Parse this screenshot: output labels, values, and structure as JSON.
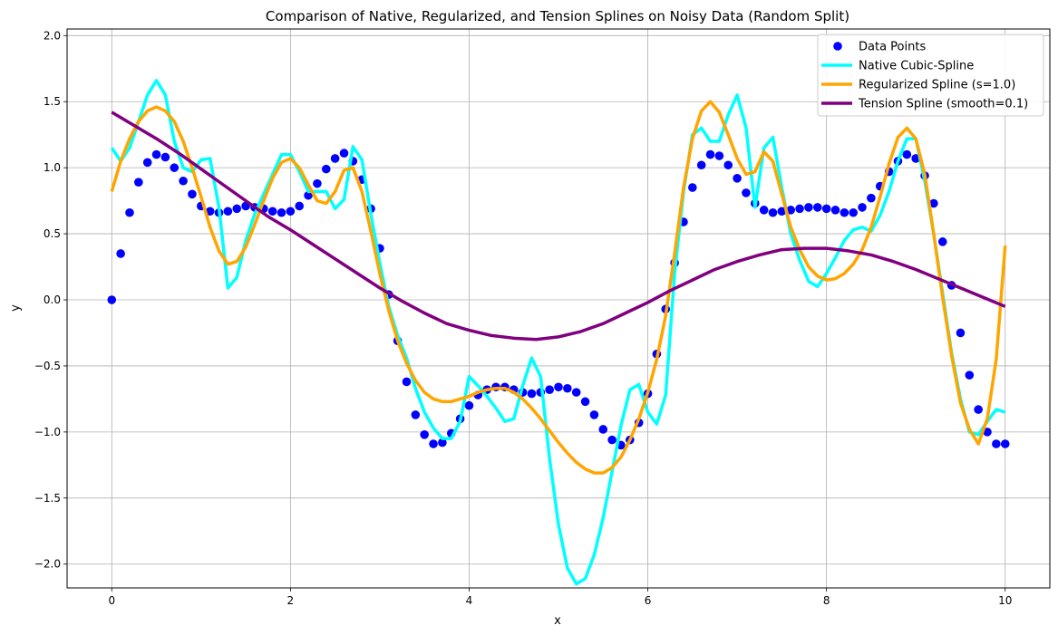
{
  "chart_data": {
    "type": "line",
    "title": "Comparison of Native, Regularized, and Tension Splines on Noisy Data (Random Split)",
    "xlabel": "x",
    "ylabel": "y",
    "xlim": [
      -0.5,
      10.5
    ],
    "ylim": [
      -2.18,
      2.05
    ],
    "xticks": [
      0,
      2,
      4,
      6,
      8,
      10
    ],
    "xtick_labels": [
      "0",
      "2",
      "4",
      "6",
      "8",
      "10"
    ],
    "yticks": [
      -2.0,
      -1.5,
      -1.0,
      -0.5,
      0.0,
      0.5,
      1.0,
      1.5,
      2.0
    ],
    "ytick_labels": [
      "−2.0",
      "−1.5",
      "−1.0",
      "−0.5",
      "0.0",
      "0.5",
      "1.0",
      "1.5",
      "2.0"
    ],
    "grid": true,
    "legend_position": "top-right",
    "series": [
      {
        "name": "Data Points",
        "kind": "scatter",
        "color": "#0000ff",
        "x": [
          0,
          0.1,
          0.2,
          0.3,
          0.4,
          0.5,
          0.6,
          0.7,
          0.8,
          0.9,
          1.0,
          1.1,
          1.2,
          1.3,
          1.4,
          1.5,
          1.6,
          1.7,
          1.8,
          1.9,
          2.0,
          2.1,
          2.2,
          2.3,
          2.4,
          2.5,
          2.6,
          2.7,
          2.8,
          2.9,
          3.0,
          3.1,
          3.2,
          3.3,
          3.4,
          3.5,
          3.6,
          3.7,
          3.8,
          3.9,
          4.0,
          4.1,
          4.2,
          4.3,
          4.4,
          4.5,
          4.6,
          4.7,
          4.8,
          4.9,
          5.0,
          5.1,
          5.2,
          5.3,
          5.4,
          5.5,
          5.6,
          5.7,
          5.8,
          5.9,
          6.0,
          6.1,
          6.2,
          6.3,
          6.4,
          6.5,
          6.6,
          6.7,
          6.8,
          6.9,
          7.0,
          7.1,
          7.2,
          7.3,
          7.4,
          7.5,
          7.6,
          7.7,
          7.8,
          7.9,
          8.0,
          8.1,
          8.2,
          8.3,
          8.4,
          8.5,
          8.6,
          8.7,
          8.8,
          8.9,
          9.0,
          9.1,
          9.2,
          9.3,
          9.4,
          9.5,
          9.6,
          9.7,
          9.8,
          9.9,
          10.0
        ],
        "y": [
          0.0,
          0.35,
          0.66,
          0.89,
          1.04,
          1.1,
          1.08,
          1.0,
          0.9,
          0.8,
          0.71,
          0.67,
          0.66,
          0.67,
          0.69,
          0.71,
          0.7,
          0.69,
          0.67,
          0.66,
          0.67,
          0.71,
          0.79,
          0.88,
          0.99,
          1.07,
          1.11,
          1.05,
          0.91,
          0.69,
          0.39,
          0.04,
          -0.31,
          -0.62,
          -0.87,
          -1.02,
          -1.09,
          -1.08,
          -1.01,
          -0.9,
          -0.8,
          -0.72,
          -0.68,
          -0.66,
          -0.66,
          -0.68,
          -0.7,
          -0.71,
          -0.7,
          -0.68,
          -0.66,
          -0.67,
          -0.7,
          -0.77,
          -0.87,
          -0.98,
          -1.06,
          -1.1,
          -1.06,
          -0.93,
          -0.71,
          -0.41,
          -0.07,
          0.28,
          0.59,
          0.85,
          1.02,
          1.1,
          1.09,
          1.02,
          0.92,
          0.81,
          0.73,
          0.68,
          0.66,
          0.67,
          0.68,
          0.69,
          0.7,
          0.7,
          0.69,
          0.68,
          0.66,
          0.66,
          0.7,
          0.77,
          0.86,
          0.97,
          1.05,
          1.1,
          1.07,
          0.94,
          0.73,
          0.44,
          0.11,
          -0.25,
          -0.57,
          -0.83,
          -1.0,
          -1.09,
          -1.09
        ]
      },
      {
        "name": "Native Cubic-Spline",
        "kind": "line",
        "color": "#00ffff",
        "x": [
          0,
          0.1,
          0.2,
          0.3,
          0.4,
          0.5,
          0.6,
          0.7,
          0.8,
          0.9,
          1.0,
          1.1,
          1.2,
          1.3,
          1.4,
          1.5,
          1.6,
          1.7,
          1.8,
          1.9,
          2.0,
          2.1,
          2.2,
          2.3,
          2.4,
          2.5,
          2.6,
          2.7,
          2.8,
          2.9,
          3.0,
          3.1,
          3.2,
          3.3,
          3.4,
          3.5,
          3.6,
          3.7,
          3.8,
          3.9,
          4.0,
          4.1,
          4.2,
          4.3,
          4.4,
          4.5,
          4.6,
          4.7,
          4.8,
          4.9,
          5.0,
          5.1,
          5.2,
          5.3,
          5.4,
          5.5,
          5.6,
          5.7,
          5.8,
          5.9,
          6.0,
          6.1,
          6.2,
          6.3,
          6.4,
          6.5,
          6.6,
          6.7,
          6.8,
          6.9,
          7.0,
          7.1,
          7.2,
          7.3,
          7.4,
          7.5,
          7.6,
          7.7,
          7.8,
          7.9,
          8.0,
          8.1,
          8.2,
          8.3,
          8.4,
          8.5,
          8.6,
          8.7,
          8.8,
          8.9,
          9.0,
          9.1,
          9.2,
          9.3,
          9.4,
          9.5,
          9.6,
          9.7,
          9.8,
          9.9,
          10.0
        ],
        "y": [
          1.15,
          1.05,
          1.15,
          1.35,
          1.55,
          1.66,
          1.55,
          1.2,
          1.0,
          0.97,
          1.06,
          1.07,
          0.7,
          0.09,
          0.17,
          0.45,
          0.65,
          0.8,
          0.95,
          1.1,
          1.1,
          0.97,
          0.82,
          0.82,
          0.82,
          0.69,
          0.76,
          1.16,
          1.06,
          0.65,
          0.28,
          -0.05,
          -0.27,
          -0.44,
          -0.67,
          -0.85,
          -0.97,
          -1.05,
          -1.05,
          -0.92,
          -0.58,
          -0.65,
          -0.73,
          -0.82,
          -0.92,
          -0.9,
          -0.65,
          -0.44,
          -0.58,
          -1.2,
          -1.7,
          -2.03,
          -2.15,
          -2.11,
          -1.93,
          -1.65,
          -1.3,
          -0.95,
          -0.68,
          -0.64,
          -0.85,
          -0.94,
          -0.72,
          0.2,
          0.82,
          1.25,
          1.3,
          1.2,
          1.2,
          1.4,
          1.55,
          1.3,
          0.7,
          1.15,
          1.23,
          0.85,
          0.5,
          0.3,
          0.14,
          0.1,
          0.2,
          0.32,
          0.45,
          0.53,
          0.55,
          0.52,
          0.64,
          0.82,
          1.05,
          1.22,
          1.22,
          0.9,
          0.5,
          0.05,
          -0.4,
          -0.75,
          -1.0,
          -1.02,
          -0.92,
          -0.83,
          -0.85
        ]
      },
      {
        "name": "Regularized Spline (s=1.0)",
        "kind": "line",
        "color": "#ffa500",
        "x": [
          0,
          0.1,
          0.2,
          0.3,
          0.4,
          0.5,
          0.6,
          0.7,
          0.8,
          0.9,
          1.0,
          1.1,
          1.2,
          1.3,
          1.4,
          1.5,
          1.6,
          1.7,
          1.8,
          1.9,
          2.0,
          2.1,
          2.2,
          2.3,
          2.4,
          2.5,
          2.6,
          2.7,
          2.8,
          2.9,
          3.0,
          3.1,
          3.2,
          3.3,
          3.4,
          3.5,
          3.6,
          3.7,
          3.8,
          3.9,
          4.0,
          4.1,
          4.2,
          4.3,
          4.4,
          4.5,
          4.6,
          4.7,
          4.8,
          4.9,
          5.0,
          5.1,
          5.2,
          5.3,
          5.4,
          5.5,
          5.6,
          5.7,
          5.8,
          5.9,
          6.0,
          6.1,
          6.2,
          6.3,
          6.4,
          6.5,
          6.6,
          6.7,
          6.8,
          6.9,
          7.0,
          7.1,
          7.2,
          7.3,
          7.4,
          7.5,
          7.6,
          7.7,
          7.8,
          7.9,
          8.0,
          8.1,
          8.2,
          8.3,
          8.4,
          8.5,
          8.6,
          8.7,
          8.8,
          8.9,
          9.0,
          9.1,
          9.2,
          9.3,
          9.4,
          9.5,
          9.6,
          9.7,
          9.8,
          9.9,
          10.0
        ],
        "y": [
          0.82,
          1.05,
          1.22,
          1.35,
          1.43,
          1.46,
          1.43,
          1.35,
          1.2,
          1.0,
          0.78,
          0.55,
          0.37,
          0.27,
          0.29,
          0.4,
          0.57,
          0.75,
          0.92,
          1.04,
          1.07,
          1.0,
          0.87,
          0.75,
          0.73,
          0.82,
          0.98,
          1.0,
          0.82,
          0.52,
          0.2,
          -0.08,
          -0.31,
          -0.48,
          -0.61,
          -0.7,
          -0.75,
          -0.77,
          -0.77,
          -0.75,
          -0.73,
          -0.7,
          -0.68,
          -0.67,
          -0.67,
          -0.7,
          -0.75,
          -0.82,
          -0.9,
          -0.99,
          -1.08,
          -1.16,
          -1.23,
          -1.28,
          -1.31,
          -1.31,
          -1.27,
          -1.19,
          -1.06,
          -0.9,
          -0.7,
          -0.45,
          -0.12,
          0.35,
          0.85,
          1.22,
          1.43,
          1.5,
          1.42,
          1.25,
          1.07,
          0.95,
          0.97,
          1.12,
          1.05,
          0.8,
          0.55,
          0.38,
          0.25,
          0.18,
          0.15,
          0.16,
          0.2,
          0.27,
          0.38,
          0.55,
          0.78,
          1.03,
          1.23,
          1.3,
          1.22,
          0.95,
          0.5,
          0.02,
          -0.42,
          -0.78,
          -0.98,
          -1.09,
          -0.9,
          -0.45,
          0.41
        ]
      },
      {
        "name": "Tension Spline (smooth=0.1)",
        "kind": "line",
        "color": "#800080",
        "x": [
          0,
          0.25,
          0.5,
          0.75,
          1.0,
          1.25,
          1.5,
          1.75,
          2.0,
          2.25,
          2.5,
          2.75,
          3.0,
          3.25,
          3.5,
          3.75,
          4.0,
          4.25,
          4.5,
          4.75,
          5.0,
          5.25,
          5.5,
          5.75,
          6.0,
          6.25,
          6.5,
          6.75,
          7.0,
          7.25,
          7.5,
          7.75,
          8.0,
          8.25,
          8.5,
          8.75,
          9.0,
          9.25,
          9.5,
          9.75,
          10.0
        ],
        "y": [
          1.42,
          1.32,
          1.22,
          1.11,
          0.99,
          0.87,
          0.75,
          0.63,
          0.53,
          0.42,
          0.31,
          0.2,
          0.09,
          -0.01,
          -0.1,
          -0.18,
          -0.23,
          -0.27,
          -0.29,
          -0.3,
          -0.28,
          -0.24,
          -0.18,
          -0.1,
          -0.02,
          0.07,
          0.15,
          0.23,
          0.29,
          0.34,
          0.38,
          0.39,
          0.39,
          0.37,
          0.34,
          0.29,
          0.23,
          0.16,
          0.09,
          0.02,
          -0.05
        ]
      }
    ]
  }
}
